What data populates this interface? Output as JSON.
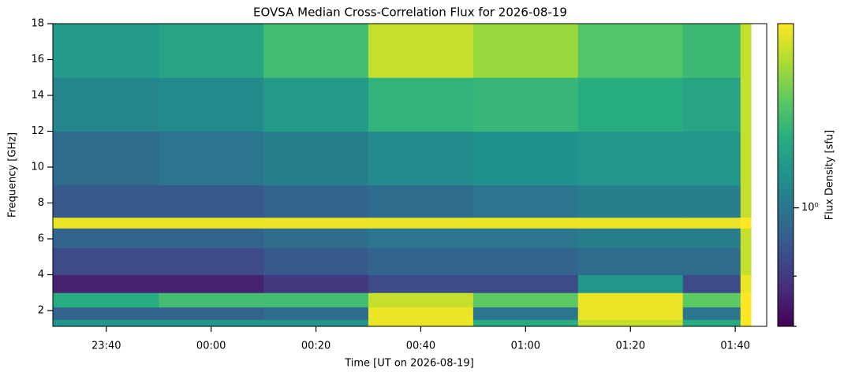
{
  "chart_data": {
    "type": "heatmap",
    "title": "EOVSA Median Cross-Correlation Flux for 2026-08-19",
    "xlabel": "Time [UT on 2026-08-19]",
    "ylabel": "Frequency [GHz]",
    "colorbar_label": "Flux Density [sfu]",
    "colormap": "viridis",
    "color_scale": "log",
    "clim": [
      0.3,
      6.5
    ],
    "cticks": [
      {
        "value": 1,
        "label": "10⁰"
      }
    ],
    "cminorticks": [
      0.5,
      0.3
    ],
    "xlim": [
      -30.2,
      106
    ],
    "xticks": [
      {
        "value": -20,
        "label": "23:40"
      },
      {
        "value": 0,
        "label": "00:00"
      },
      {
        "value": 20,
        "label": "00:20"
      },
      {
        "value": 40,
        "label": "00:40"
      },
      {
        "value": 60,
        "label": "01:00"
      },
      {
        "value": 80,
        "label": "01:20"
      },
      {
        "value": 100,
        "label": "01:40"
      }
    ],
    "ylim": [
      1.12,
      18
    ],
    "yticks": [
      2,
      4,
      6,
      8,
      10,
      12,
      14,
      16,
      18
    ],
    "x_edges": [
      -30.2,
      -10,
      10,
      30,
      50,
      70,
      90,
      101,
      103
    ],
    "y_edges": [
      1.12,
      1.5,
      2.2,
      3,
      4,
      5.5,
      6.6,
      7.2,
      9,
      12,
      15,
      18
    ],
    "z": [
      [
        1.5,
        1.5,
        1.5,
        6,
        2,
        5,
        2,
        6.5
      ],
      [
        0.8,
        0.8,
        0.9,
        6,
        1,
        6,
        1,
        6.5
      ],
      [
        2,
        2.5,
        2.5,
        5,
        3,
        6,
        3,
        6.5
      ],
      [
        0.4,
        0.4,
        0.5,
        0.6,
        0.6,
        1.5,
        0.6,
        6
      ],
      [
        0.6,
        0.6,
        0.7,
        0.8,
        0.8,
        0.9,
        0.9,
        5
      ],
      [
        0.8,
        0.8,
        0.9,
        1.0,
        1.0,
        1.1,
        1.1,
        5
      ],
      [
        6,
        6,
        6,
        6,
        6,
        6,
        6,
        6.5
      ],
      [
        0.7,
        0.7,
        0.8,
        0.9,
        1.0,
        1.1,
        1.1,
        5
      ],
      [
        0.9,
        1.0,
        1.1,
        1.3,
        1.4,
        1.5,
        1.5,
        5
      ],
      [
        1.2,
        1.3,
        1.6,
        2.2,
        2.3,
        2.0,
        1.8,
        5
      ],
      [
        1.6,
        1.8,
        2.5,
        5,
        4,
        2.8,
        2.4,
        5
      ]
    ]
  }
}
